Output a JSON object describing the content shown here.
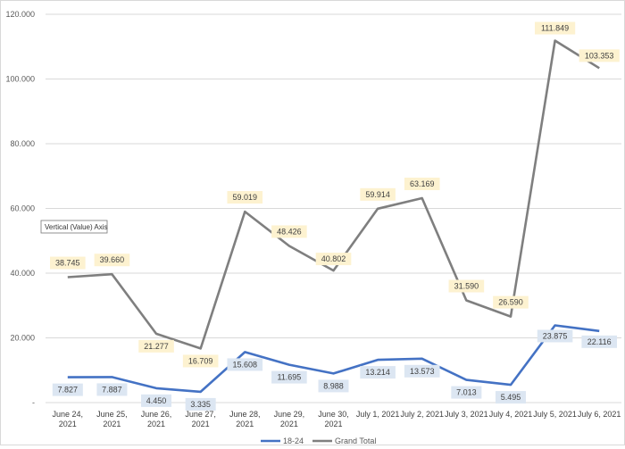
{
  "chart_data": {
    "type": "line",
    "categories": [
      [
        "June 24,",
        "2021"
      ],
      [
        "June 25,",
        "2021"
      ],
      [
        "June 26,",
        "2021"
      ],
      [
        "June 27,",
        "2021"
      ],
      [
        "June 28,",
        "2021"
      ],
      [
        "June 29,",
        "2021"
      ],
      [
        "June 30,",
        "2021"
      ],
      [
        "July 1, 2021"
      ],
      [
        "July 2, 2021"
      ],
      [
        "July 3, 2021"
      ],
      [
        "July 4, 2021"
      ],
      [
        "July 5, 2021"
      ],
      [
        "July 6, 2021"
      ]
    ],
    "series": [
      {
        "name": "18-24",
        "color": "#4472c4",
        "label_bg": "#dce6f2",
        "values": [
          7827,
          7887,
          4450,
          3335,
          15608,
          11695,
          8988,
          13214,
          13573,
          7013,
          5495,
          23875,
          22116
        ],
        "labels": [
          "7.827",
          "7.887",
          "4.450",
          "3.335",
          "15.608",
          "11.695",
          "8.988",
          "13.214",
          "13.573",
          "7.013",
          "5.495",
          "23.875",
          "22.116"
        ]
      },
      {
        "name": "Grand Total",
        "color": "#7f7f7f",
        "label_bg": "#fdf2d0",
        "values": [
          38745,
          39660,
          21277,
          16709,
          59019,
          48426,
          40802,
          59914,
          63169,
          31590,
          26590,
          111849,
          103353
        ],
        "labels": [
          "38.745",
          "39.660",
          "21.277",
          "16.709",
          "59.019",
          "48.426",
          "40.802",
          "59.914",
          "63.169",
          "31.590",
          "26.590",
          "111.849",
          "103.353"
        ]
      }
    ],
    "yticks": [
      0,
      20000,
      40000,
      60000,
      80000,
      100000,
      120000
    ],
    "ytick_labels": [
      "-",
      "20.000",
      "40.000",
      "60.000",
      "80.000",
      "100.000",
      "120.000"
    ],
    "ylim": [
      0,
      120000
    ],
    "grid": true,
    "legend_position": "bottom",
    "tooltip": "Vertical (Value) Axis"
  }
}
